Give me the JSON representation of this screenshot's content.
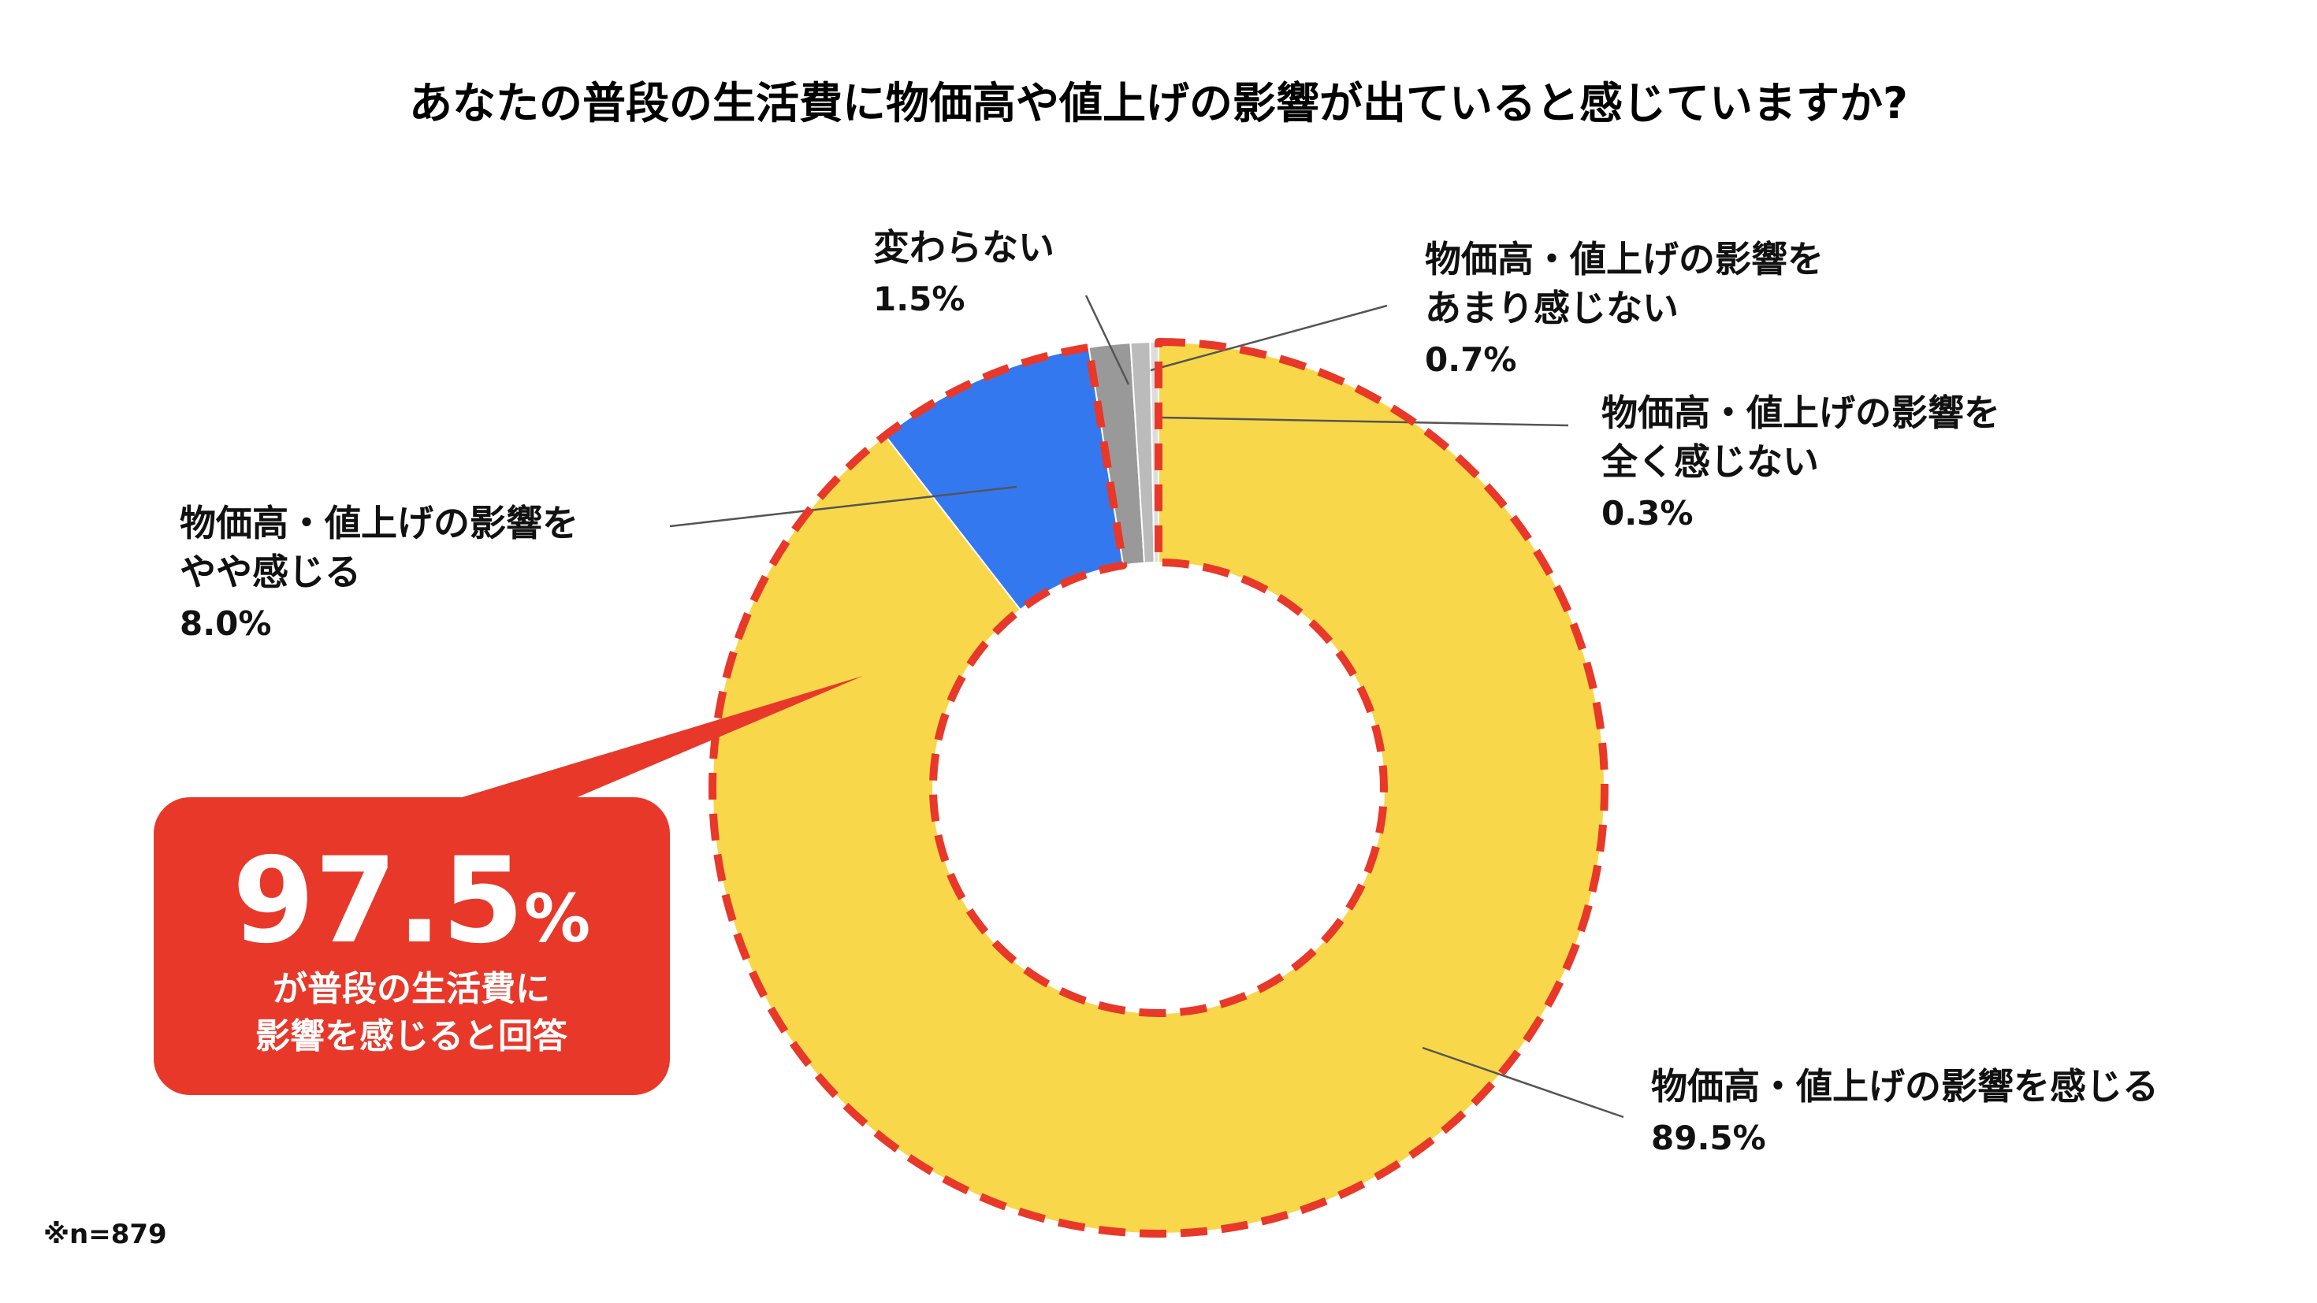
{
  "chart_data": {
    "type": "pie",
    "variant": "donut",
    "title": "あなたの普段の生活費に物価高や値上げの影響が出ていると感じていますか?",
    "categories": [
      "物価高・値上げの影響を感じる",
      "物価高・値上げの影響をやや感じる",
      "変わらない",
      "物価高・値上げの影響をあまり感じない",
      "物価高・値上げの影響を全く感じない"
    ],
    "values": [
      89.5,
      8.0,
      1.5,
      0.7,
      0.3
    ],
    "labels": [
      {
        "lines": [
          "物価高・値上げの影響を感じる"
        ],
        "pct": "89.5%"
      },
      {
        "lines": [
          "物価高・値上げの影響を",
          "やや感じる"
        ],
        "pct": "8.0%"
      },
      {
        "lines": [
          "変わらない"
        ],
        "pct": "1.5%"
      },
      {
        "lines": [
          "物価高・値上げの影響を",
          "あまり感じない"
        ],
        "pct": "0.7%"
      },
      {
        "lines": [
          "物価高・値上げの影響を",
          "全く感じない"
        ],
        "pct": "0.3%"
      }
    ],
    "colors": [
      "#F8D84A",
      "#3478F0",
      "#999999",
      "#BBBBBB",
      "#DDDDDD"
    ],
    "highlight": {
      "segments": [
        0,
        1
      ],
      "outline_color": "#E8382A",
      "value": "97.5",
      "unit": "%",
      "text_lines": [
        "が普段の生活費に",
        "影響を感じると回答"
      ]
    },
    "note": "※n=879"
  }
}
